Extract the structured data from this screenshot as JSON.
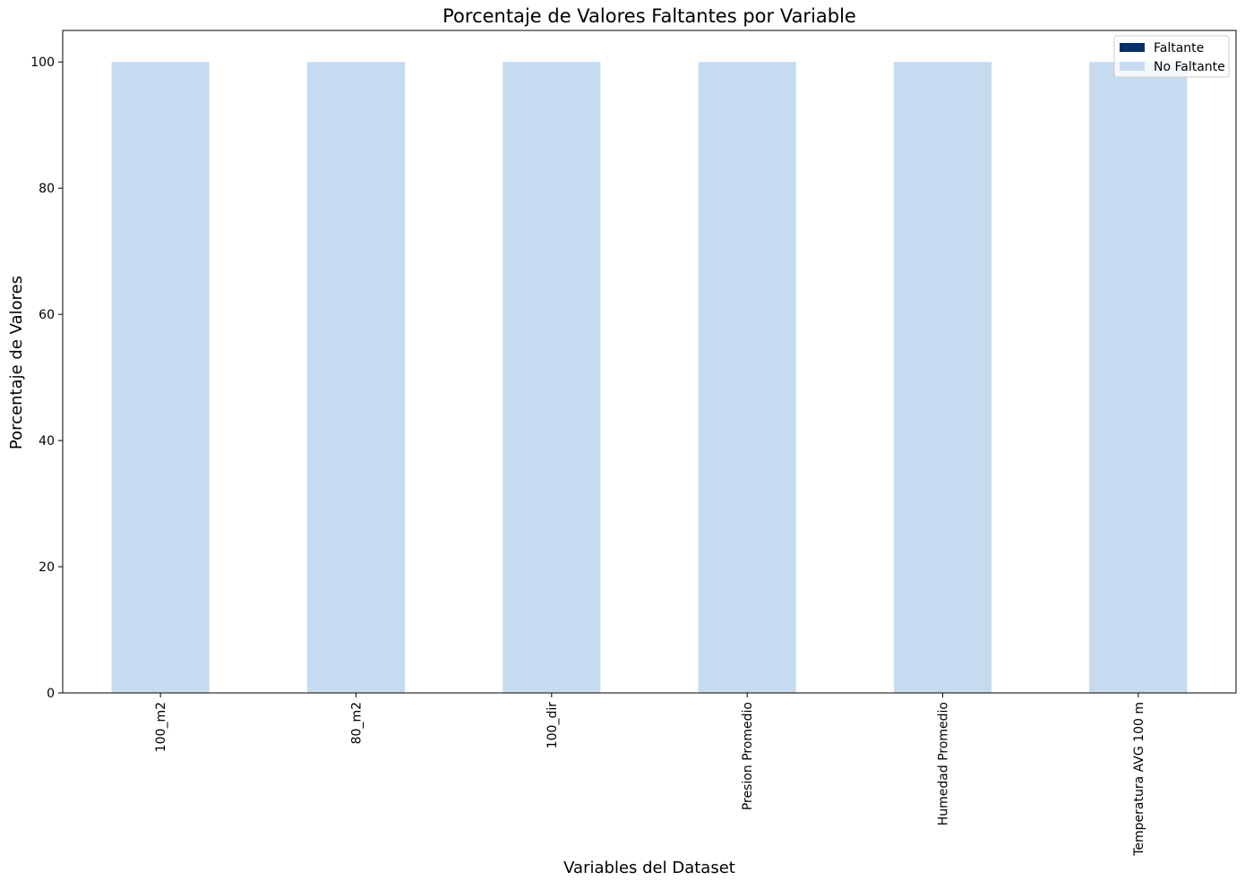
{
  "chart_data": {
    "type": "bar",
    "stacked": true,
    "title": "Porcentaje de Valores Faltantes por Variable",
    "xlabel": "Variables del Dataset",
    "ylabel": "Porcentaje de Valores",
    "categories": [
      "100_m2",
      "80_m2",
      "100_dir",
      "Presion Promedio",
      "Humedad Promedio",
      "Temperatura AVG 100 m"
    ],
    "series": [
      {
        "name": "Faltante",
        "color": "#08306b",
        "values": [
          0,
          0,
          0,
          0,
          0,
          0
        ]
      },
      {
        "name": "No Faltante",
        "color": "#c6dbef",
        "values": [
          100,
          100,
          100,
          100,
          100,
          100
        ]
      }
    ],
    "ylim": [
      0,
      105
    ],
    "yticks": [
      0,
      20,
      40,
      60,
      80,
      100
    ],
    "x_tick_rotation": "vertical",
    "grid": false,
    "legend_position": "top-right"
  }
}
